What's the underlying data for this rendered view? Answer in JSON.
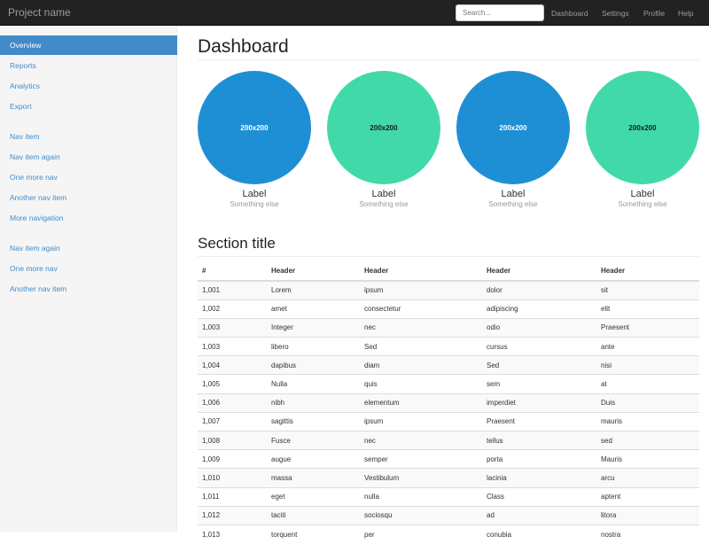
{
  "navbar": {
    "brand": "Project name",
    "search_placeholder": "Search...",
    "links": [
      "Dashboard",
      "Settings",
      "Profile",
      "Help"
    ]
  },
  "sidebar": {
    "groups": [
      [
        "Overview",
        "Reports",
        "Analytics",
        "Export"
      ],
      [
        "Nav item",
        "Nav item again",
        "One more nav",
        "Another nav item",
        "More navigation"
      ],
      [
        "Nav item again",
        "One more nav",
        "Another nav item"
      ]
    ],
    "active": "Overview"
  },
  "main": {
    "title": "Dashboard",
    "placeholders": [
      {
        "text": "200x200",
        "label": "Label",
        "sub": "Something else",
        "color": "#1f8fd5",
        "text_color": "#ffffff"
      },
      {
        "text": "200x200",
        "label": "Label",
        "sub": "Something else",
        "color": "#42d9aa",
        "text_color": "#1a1a1a"
      },
      {
        "text": "200x200",
        "label": "Label",
        "sub": "Something else",
        "color": "#1f8fd5",
        "text_color": "#ffffff"
      },
      {
        "text": "200x200",
        "label": "Label",
        "sub": "Something else",
        "color": "#42d9aa",
        "text_color": "#1a1a1a"
      }
    ],
    "section_title": "Section title",
    "table": {
      "headers": [
        "#",
        "Header",
        "Header",
        "Header",
        "Header"
      ],
      "rows": [
        [
          "1,001",
          "Lorem",
          "ipsum",
          "dolor",
          "sit"
        ],
        [
          "1,002",
          "amet",
          "consectetur",
          "adipiscing",
          "elit"
        ],
        [
          "1,003",
          "Integer",
          "nec",
          "odio",
          "Praesent"
        ],
        [
          "1,003",
          "libero",
          "Sed",
          "cursus",
          "ante"
        ],
        [
          "1,004",
          "dapibus",
          "diam",
          "Sed",
          "nisi"
        ],
        [
          "1,005",
          "Nulla",
          "quis",
          "sem",
          "at"
        ],
        [
          "1,006",
          "nibh",
          "elementum",
          "imperdiet",
          "Duis"
        ],
        [
          "1,007",
          "sagittis",
          "ipsum",
          "Praesent",
          "mauris"
        ],
        [
          "1,008",
          "Fusce",
          "nec",
          "tellus",
          "sed"
        ],
        [
          "1,009",
          "augue",
          "semper",
          "porta",
          "Mauris"
        ],
        [
          "1,010",
          "massa",
          "Vestibulum",
          "lacinia",
          "arcu"
        ],
        [
          "1,011",
          "eget",
          "nulla",
          "Class",
          "aptent"
        ],
        [
          "1,012",
          "taciti",
          "sociosqu",
          "ad",
          "litora"
        ],
        [
          "1,013",
          "torquent",
          "per",
          "conubia",
          "nostra"
        ]
      ]
    }
  }
}
